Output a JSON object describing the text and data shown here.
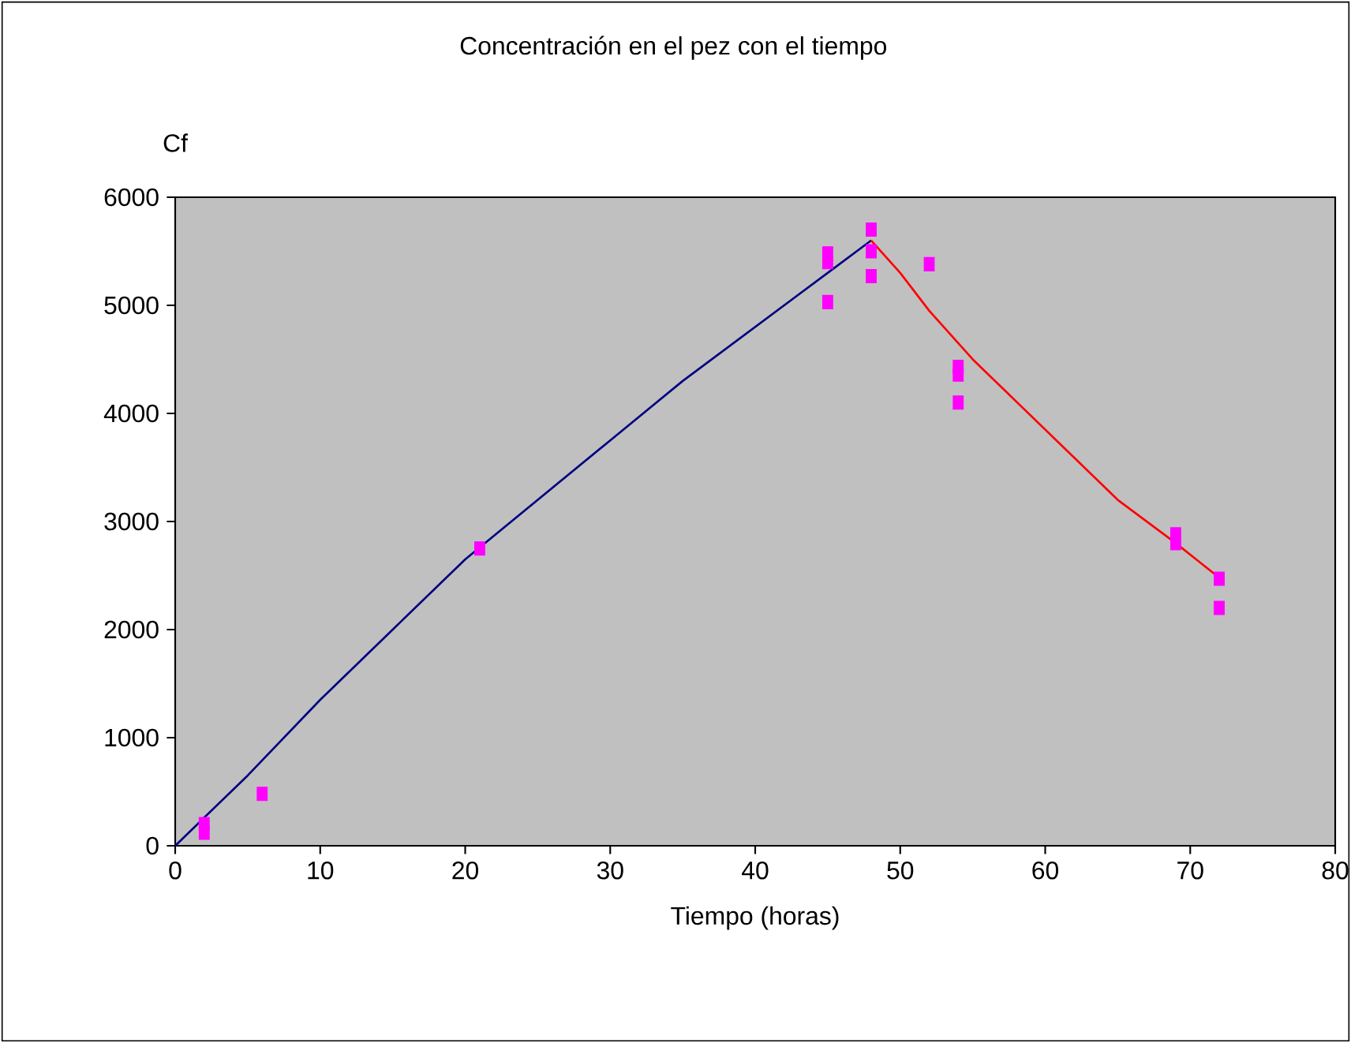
{
  "chart_data": {
    "type": "line",
    "title": "Concentración en el pez con el tiempo",
    "xlabel": "Tiempo (horas)",
    "ylabel": "Cf",
    "xlim": [
      0,
      80
    ],
    "xticks": [
      0,
      10,
      20,
      30,
      40,
      50,
      60,
      70,
      80
    ],
    "ylim": [
      0,
      6000
    ],
    "yticks": [
      0,
      1000,
      2000,
      3000,
      4000,
      5000,
      6000
    ],
    "series": [
      {
        "color": "#000080",
        "marker": "none",
        "x": [
          0,
          5,
          10,
          15,
          20,
          25,
          30,
          35,
          40,
          45,
          48
        ],
        "values": [
          0,
          650,
          1350,
          2000,
          2650,
          3200,
          3750,
          4300,
          4800,
          5300,
          5600
        ]
      },
      {
        "color": "#ff0000",
        "marker": "none",
        "x": [
          48,
          50,
          52,
          55,
          60,
          65,
          69,
          72
        ],
        "values": [
          5600,
          5300,
          4950,
          4500,
          3850,
          3200,
          2800,
          2480
        ]
      },
      {
        "type": "scatter",
        "color": "#ff00ff",
        "marker": "square",
        "x": [
          2,
          2,
          6,
          21,
          45,
          45,
          45,
          48,
          48,
          48,
          52,
          54,
          54,
          54,
          69,
          69,
          72,
          72
        ],
        "values": [
          120,
          200,
          480,
          2750,
          5480,
          5400,
          5030,
          5700,
          5500,
          5270,
          5380,
          4430,
          4360,
          4100,
          2880,
          2800,
          2470,
          2200
        ]
      }
    ]
  }
}
